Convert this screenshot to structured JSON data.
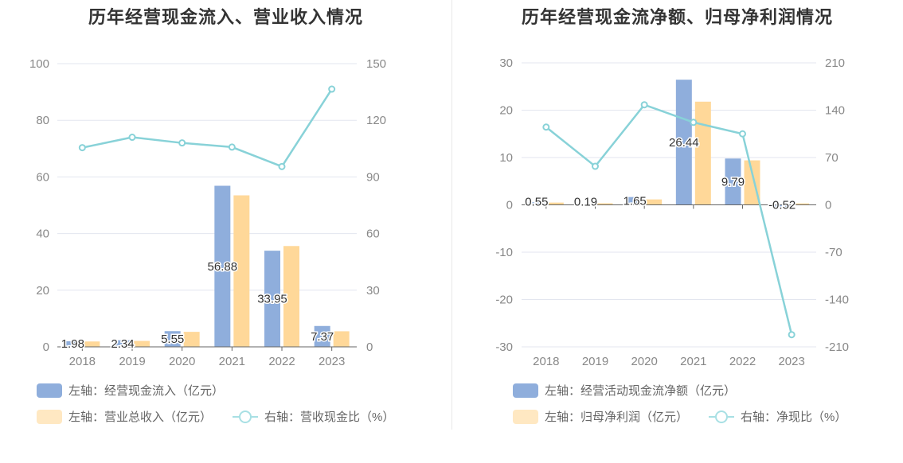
{
  "colors": {
    "bar_primary": "#8FAEDC",
    "bar_secondary": "#FFD899",
    "line": "#88D2D8",
    "grid": "#E3E6EF",
    "axis_text": "#888888"
  },
  "chart_data": [
    {
      "type": "bar",
      "title": "历年经营现金流入、营业收入情况",
      "categories": [
        "2018",
        "2019",
        "2020",
        "2021",
        "2022",
        "2023"
      ],
      "left_axis": {
        "ylim": [
          0,
          100
        ],
        "ticks": [
          "100",
          "80",
          "60",
          "40",
          "20",
          "0"
        ]
      },
      "right_axis": {
        "ylim": [
          0,
          150
        ],
        "ticks": [
          "150",
          "120",
          "90",
          "60",
          "30",
          "0"
        ]
      },
      "series": [
        {
          "name": "左轴：经营现金流入（亿元）",
          "kind": "bar",
          "axis": "left",
          "values": [
            1.98,
            2.34,
            5.55,
            56.88,
            33.95,
            7.37
          ],
          "labels": [
            "1.98",
            "2.34",
            "5.55",
            "56.88",
            "33.95",
            "7.37"
          ]
        },
        {
          "name": "左轴：营业总收入（亿元）",
          "kind": "bar",
          "axis": "left",
          "values": [
            1.9,
            2.1,
            5.3,
            53.5,
            35.6,
            5.5
          ]
        },
        {
          "name": "右轴：营收现金比（%）",
          "kind": "line",
          "axis": "right",
          "values": [
            105.5,
            111,
            108,
            105.8,
            95.5,
            136.5
          ]
        }
      ],
      "legend": {
        "placement": "bottom",
        "items": [
          "左轴：经营现金流入（亿元）",
          "左轴：营业总收入（亿元）",
          "右轴：营收现金比（%）"
        ]
      }
    },
    {
      "type": "bar",
      "title": "历年经营现金流净额、归母净利润情况",
      "categories": [
        "2018",
        "2019",
        "2020",
        "2021",
        "2022",
        "2023"
      ],
      "left_axis": {
        "ylim": [
          -30,
          30
        ],
        "ticks": [
          "30",
          "20",
          "10",
          "0",
          "-10",
          "-20",
          "-30"
        ]
      },
      "right_axis": {
        "ylim": [
          -210,
          210
        ],
        "ticks": [
          "210",
          "140",
          "70",
          "0",
          "-70",
          "-140",
          "-210"
        ]
      },
      "series": [
        {
          "name": "左轴：经营活动现金流净额（亿元）",
          "kind": "bar",
          "axis": "left",
          "values": [
            0.55,
            0.19,
            1.65,
            26.44,
            9.79,
            -0.52
          ],
          "labels": [
            "0.55",
            "0.19",
            "1.65",
            "26.44",
            "9.79",
            "-0.52"
          ]
        },
        {
          "name": "左轴：归母净利润（亿元）",
          "kind": "bar",
          "axis": "left",
          "values": [
            0.48,
            0.33,
            1.15,
            21.8,
            9.4,
            0.3
          ]
        },
        {
          "name": "右轴：净现比（%）",
          "kind": "line",
          "axis": "right",
          "values": [
            115,
            57,
            148,
            122,
            105,
            -192
          ]
        }
      ],
      "legend": {
        "placement": "bottom",
        "items": [
          "左轴：经营活动现金流净额（亿元）",
          "左轴：归母净利润（亿元）",
          "右轴：净现比（%）"
        ]
      }
    }
  ]
}
